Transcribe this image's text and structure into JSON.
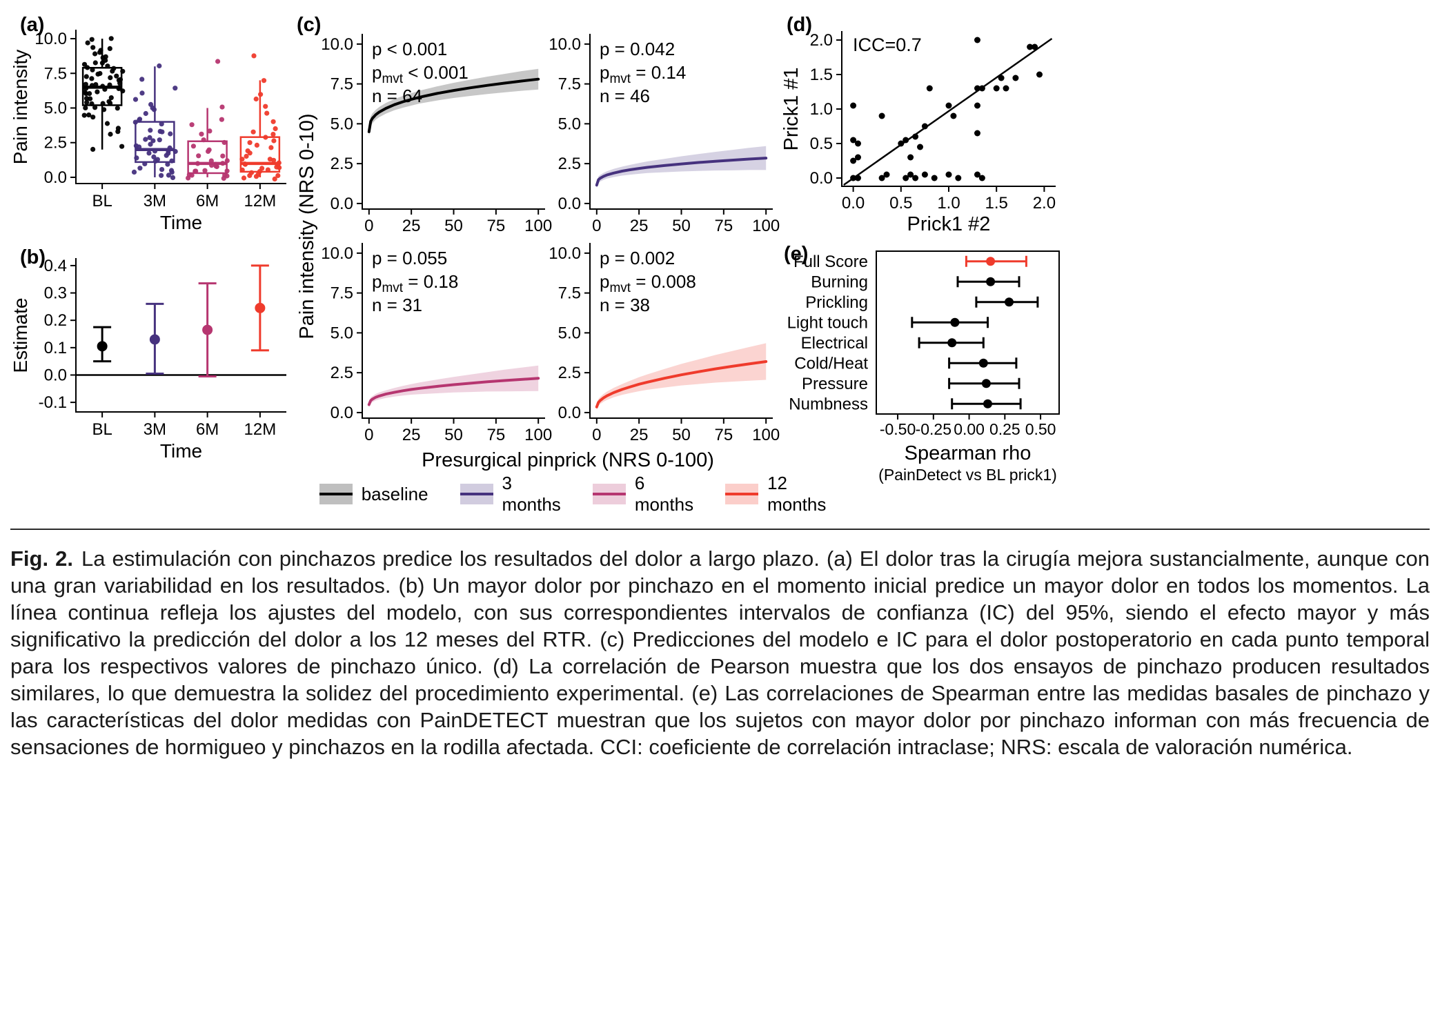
{
  "figure": {
    "panels": {
      "a": {
        "label": "(a)"
      },
      "b": {
        "label": "(b)"
      },
      "c": {
        "label": "(c)"
      },
      "d": {
        "label": "(d)"
      },
      "e": {
        "label": "(e)"
      }
    },
    "legend": {
      "items": [
        {
          "label": "baseline",
          "color": "#000000"
        },
        {
          "label": "3 months",
          "color": "#46327e"
        },
        {
          "label": "6 months",
          "color": "#b63670"
        },
        {
          "label": "12 months",
          "color": "#ef3b2c"
        }
      ]
    },
    "caption": {
      "prefix": "Fig. 2.",
      "text": "La estimulación con pinchazos predice los resultados del dolor a largo plazo. (a) El dolor tras la cirugía mejora sustancialmente, aunque con una gran variabilidad en los resultados. (b) Un mayor dolor por pinchazo en el momento inicial predice un mayor dolor en todos los momentos. La línea continua refleja los ajustes del modelo, con sus correspondientes intervalos de confianza (IC) del 95%, siendo el efecto mayor y más significativo la predicción del dolor a los 12 meses del RTR. (c) Predicciones del modelo e IC para el dolor postoperatorio en cada punto temporal para los respectivos valores de pinchazo único. (d) La correlación de Pearson muestra que los dos ensayos de pinchazo producen resultados similares, lo que demuestra la solidez del procedimiento experimental. (e) Las correlaciones de Spearman entre las medidas basales de pinchazo y las características del dolor medidas con PainDETECT muestran que los sujetos con mayor dolor por pinchazo informan con más frecuencia de sensaciones de hormigueo y pinchazos en la rodilla afectada. CCI: coeficiente de correlación intraclase; NRS: escala de valoración numérica."
    }
  },
  "chart_data": [
    {
      "id": "a",
      "type": "boxplot",
      "xlabel": "Time",
      "ylabel": "Pain intensity",
      "categories": [
        "BL",
        "3M",
        "6M",
        "12M"
      ],
      "yticks": [
        0,
        2.5,
        5,
        7.5,
        10
      ],
      "ytick_labels": [
        "0.0",
        "2.5",
        "5.0",
        "7.5",
        "10.0"
      ],
      "ylim": [
        -0.45,
        10.6
      ],
      "boxes": [
        {
          "category": "BL",
          "color": "#000000",
          "lo": 2.0,
          "q1": 5.2,
          "median": 6.5,
          "q3": 7.9,
          "hi": 10.0
        },
        {
          "category": "3M",
          "color": "#46327e",
          "lo": 0.0,
          "q1": 1.1,
          "median": 2.0,
          "q3": 4.0,
          "hi": 8.0
        },
        {
          "category": "6M",
          "color": "#b63670",
          "lo": 0.0,
          "q1": 0.3,
          "median": 1.0,
          "q3": 2.6,
          "hi": 5.0
        },
        {
          "category": "12M",
          "color": "#ef3b2c",
          "lo": 0.0,
          "q1": 0.4,
          "median": 1.0,
          "q3": 2.9,
          "hi": 7.0
        }
      ],
      "points": {
        "BL": [
          2.0,
          2.2,
          3.0,
          3.2,
          3.5,
          4.0,
          4.2,
          4.5,
          4.6,
          4.8,
          5.0,
          5.0,
          5.1,
          5.2,
          5.3,
          5.4,
          5.5,
          5.5,
          5.6,
          5.7,
          5.8,
          5.9,
          6.0,
          6.0,
          6.1,
          6.2,
          6.2,
          6.3,
          6.4,
          6.5,
          6.5,
          6.6,
          6.7,
          6.8,
          6.8,
          6.9,
          7.0,
          7.0,
          7.1,
          7.2,
          7.3,
          7.4,
          7.5,
          7.5,
          7.6,
          7.7,
          7.8,
          7.9,
          8.0,
          8.0,
          8.1,
          8.2,
          8.3,
          8.5,
          8.6,
          8.7,
          8.8,
          9.0,
          9.1,
          9.3,
          9.5,
          9.7,
          10.0,
          10.0
        ],
        "3M": [
          0.0,
          0.0,
          0.2,
          0.3,
          0.5,
          0.5,
          0.7,
          0.8,
          1.0,
          1.0,
          1.1,
          1.2,
          1.3,
          1.4,
          1.5,
          1.5,
          1.6,
          1.7,
          1.8,
          1.9,
          2.0,
          2.0,
          2.1,
          2.2,
          2.3,
          2.5,
          2.6,
          2.8,
          3.0,
          3.0,
          3.2,
          3.4,
          3.5,
          3.7,
          3.9,
          4.0,
          4.2,
          4.5,
          4.8,
          5.0,
          5.3,
          5.6,
          6.0,
          6.5,
          7.0,
          8.0
        ],
        "6M": [
          0.0,
          0.0,
          0.0,
          0.1,
          0.2,
          0.3,
          0.3,
          0.4,
          0.5,
          0.6,
          0.7,
          0.8,
          0.9,
          1.0,
          1.0,
          1.1,
          1.2,
          1.3,
          1.5,
          1.6,
          1.8,
          2.0,
          2.2,
          2.4,
          2.6,
          3.0,
          3.4,
          3.8,
          4.2,
          5.0,
          8.5
        ],
        "12M": [
          0.0,
          0.0,
          0.0,
          0.1,
          0.2,
          0.3,
          0.3,
          0.4,
          0.5,
          0.5,
          0.6,
          0.7,
          0.8,
          0.9,
          1.0,
          1.0,
          1.1,
          1.2,
          1.3,
          1.4,
          1.5,
          1.7,
          1.9,
          2.0,
          2.2,
          2.4,
          2.6,
          2.8,
          3.0,
          3.3,
          3.6,
          4.0,
          4.5,
          5.0,
          5.5,
          6.0,
          7.0,
          8.7
        ]
      }
    },
    {
      "id": "b",
      "type": "pointrange",
      "xlabel": "Time",
      "ylabel": "Estimate",
      "categories": [
        "BL",
        "3M",
        "6M",
        "12M"
      ],
      "yticks": [
        -0.1,
        0,
        0.1,
        0.2,
        0.3,
        0.4
      ],
      "ytick_labels": [
        "-0.1",
        "0.0",
        "0.1",
        "0.2",
        "0.3",
        "0.4"
      ],
      "ylim": [
        -0.135,
        0.425
      ],
      "hline": 0,
      "points": [
        {
          "category": "BL",
          "color": "#000000",
          "estimate": 0.105,
          "lo": 0.05,
          "hi": 0.175
        },
        {
          "category": "3M",
          "color": "#46327e",
          "estimate": 0.13,
          "lo": 0.005,
          "hi": 0.26
        },
        {
          "category": "6M",
          "color": "#b63670",
          "estimate": 0.165,
          "lo": -0.005,
          "hi": 0.335
        },
        {
          "category": "12M",
          "color": "#ef3b2c",
          "estimate": 0.245,
          "lo": 0.09,
          "hi": 0.4
        }
      ]
    },
    {
      "id": "c",
      "type": "line",
      "xlabel": "Presurgical pinprick (NRS 0-100)",
      "ylabel": "Pain intensity (NRS 0-10)",
      "xticks": [
        0,
        25,
        50,
        75,
        100
      ],
      "xtick_labels": [
        "0",
        "25",
        "50",
        "75",
        "100"
      ],
      "yticks": [
        0,
        2.5,
        5,
        7.5,
        10
      ],
      "ytick_labels": [
        "0.0",
        "2.5",
        "5.0",
        "7.5",
        "10.0"
      ],
      "xlim": [
        -4,
        104
      ],
      "ylim": [
        -0.35,
        10.6
      ],
      "x": [
        0,
        1,
        2,
        4,
        6,
        10,
        15,
        20,
        25,
        30,
        40,
        50,
        60,
        70,
        80,
        90,
        100
      ],
      "series": [
        {
          "name": "baseline",
          "color": "#000000",
          "stats": {
            "p": "p < 0.001",
            "pmvt_sub": "mvt",
            "pmvt": "< 0.001",
            "n": "n = 64"
          },
          "y": [
            4.5,
            5.16,
            5.34,
            5.57,
            5.73,
            5.97,
            6.2,
            6.38,
            6.53,
            6.67,
            6.9,
            7.09,
            7.26,
            7.41,
            7.55,
            7.68,
            7.8
          ],
          "ylo": [
            4.2,
            4.86,
            5.03,
            5.26,
            5.41,
            5.64,
            5.85,
            6.01,
            6.14,
            6.27,
            6.46,
            6.62,
            6.75,
            6.87,
            6.97,
            7.07,
            7.15
          ],
          "yhi": [
            4.8,
            5.46,
            5.65,
            5.88,
            6.05,
            6.31,
            6.55,
            6.75,
            6.92,
            7.08,
            7.34,
            7.57,
            7.77,
            7.96,
            8.13,
            8.3,
            8.45
          ]
        },
        {
          "name": "3 months",
          "color": "#46327e",
          "stats": {
            "p": "p = 0.042",
            "pmvt_sub": "mvt",
            "pmvt": "= 0.14",
            "n": "n = 46"
          },
          "y": [
            1.15,
            1.49,
            1.58,
            1.7,
            1.79,
            1.91,
            2.03,
            2.12,
            2.2,
            2.27,
            2.38,
            2.48,
            2.57,
            2.65,
            2.72,
            2.79,
            2.85
          ],
          "ylo": [
            0.95,
            1.28,
            1.37,
            1.48,
            1.56,
            1.66,
            1.75,
            1.81,
            1.86,
            1.91,
            1.96,
            2.01,
            2.04,
            2.07,
            2.08,
            2.1,
            2.1
          ],
          "yhi": [
            1.35,
            1.7,
            1.79,
            1.92,
            2.02,
            2.17,
            2.31,
            2.43,
            2.54,
            2.64,
            2.8,
            2.96,
            3.1,
            3.24,
            3.36,
            3.49,
            3.6
          ]
        },
        {
          "name": "6 months",
          "color": "#b63670",
          "stats": {
            "p": "p = 0.055",
            "pmvt_sub": "mvt",
            "pmvt": "= 0.18",
            "n": "n = 31"
          },
          "y": [
            0.5,
            0.76,
            0.84,
            0.96,
            1.04,
            1.16,
            1.27,
            1.37,
            1.45,
            1.52,
            1.64,
            1.75,
            1.84,
            1.93,
            2.01,
            2.08,
            2.15
          ],
          "ylo": [
            0.32,
            0.57,
            0.65,
            0.76,
            0.82,
            0.92,
            1.0,
            1.07,
            1.12,
            1.15,
            1.21,
            1.26,
            1.29,
            1.32,
            1.33,
            1.34,
            1.35
          ],
          "yhi": [
            0.68,
            0.95,
            1.03,
            1.17,
            1.26,
            1.4,
            1.54,
            1.67,
            1.79,
            1.89,
            2.07,
            2.24,
            2.39,
            2.54,
            2.69,
            2.82,
            2.95
          ]
        },
        {
          "name": "12 months",
          "color": "#ef3b2c",
          "stats": {
            "p": "p = 0.002",
            "pmvt_sub": "mvt",
            "pmvt": "= 0.008",
            "n": "n = 38"
          },
          "y": [
            0.35,
            0.64,
            0.75,
            0.92,
            1.05,
            1.25,
            1.45,
            1.62,
            1.78,
            1.91,
            2.15,
            2.37,
            2.56,
            2.74,
            2.9,
            3.05,
            3.2
          ],
          "ylo": [
            0.15,
            0.43,
            0.53,
            0.68,
            0.79,
            0.96,
            1.11,
            1.23,
            1.34,
            1.43,
            1.57,
            1.7,
            1.79,
            1.88,
            1.94,
            2.0,
            2.05
          ],
          "yhi": [
            0.55,
            0.85,
            0.97,
            1.16,
            1.31,
            1.55,
            1.79,
            2.01,
            2.22,
            2.4,
            2.73,
            3.05,
            3.33,
            3.61,
            3.86,
            4.11,
            4.35
          ]
        }
      ]
    },
    {
      "id": "d",
      "type": "scatter",
      "xlabel": "Prick1 #2",
      "ylabel": "Prick1 #1",
      "annotation": "ICC=0.7",
      "xticks": [
        0,
        0.5,
        1,
        1.5,
        2
      ],
      "xtick_labels": [
        "0.0",
        "0.5",
        "1.0",
        "1.5",
        "2.0"
      ],
      "yticks": [
        0,
        0.5,
        1,
        1.5,
        2
      ],
      "ytick_labels": [
        "0.0",
        "0.5",
        "1.0",
        "1.5",
        "2.0"
      ],
      "xlim": [
        -0.12,
        2.12
      ],
      "ylim": [
        -0.12,
        2.12
      ],
      "line": {
        "x1": -0.1,
        "y1": -0.1,
        "x2": 2.08,
        "y2": 2.02
      },
      "points": [
        [
          0,
          0
        ],
        [
          0.05,
          0
        ],
        [
          0.3,
          0
        ],
        [
          0.35,
          0.05
        ],
        [
          0.55,
          0
        ],
        [
          0.6,
          0.05
        ],
        [
          0.65,
          0
        ],
        [
          0.75,
          0.05
        ],
        [
          0.85,
          0
        ],
        [
          1.0,
          0.05
        ],
        [
          1.1,
          0
        ],
        [
          1.3,
          0.05
        ],
        [
          1.35,
          0
        ],
        [
          0,
          0.25
        ],
        [
          0.05,
          0.3
        ],
        [
          0,
          0.55
        ],
        [
          0.05,
          0.5
        ],
        [
          0,
          1.05
        ],
        [
          0.3,
          0.9
        ],
        [
          0.5,
          0.5
        ],
        [
          0.55,
          0.55
        ],
        [
          0.6,
          0.3
        ],
        [
          0.65,
          0.6
        ],
        [
          0.7,
          0.45
        ],
        [
          0.75,
          0.75
        ],
        [
          0.8,
          1.3
        ],
        [
          1.0,
          1.05
        ],
        [
          1.05,
          0.9
        ],
        [
          1.3,
          1.3
        ],
        [
          1.3,
          1.05
        ],
        [
          1.3,
          0.65
        ],
        [
          1.3,
          2.0
        ],
        [
          1.35,
          1.3
        ],
        [
          1.5,
          1.3
        ],
        [
          1.55,
          1.45
        ],
        [
          1.6,
          1.3
        ],
        [
          1.7,
          1.45
        ],
        [
          1.85,
          1.9
        ],
        [
          1.9,
          1.9
        ],
        [
          1.95,
          1.5
        ]
      ]
    },
    {
      "id": "e",
      "type": "forest",
      "xlabel": "Spearman rho",
      "xlabel_sub": "(PainDetect vs BL prick1)",
      "xticks": [
        -0.5,
        -0.25,
        0,
        0.25,
        0.5
      ],
      "xtick_labels": [
        "-0.50",
        "-0.25",
        "0.00",
        "0.25",
        "0.50"
      ],
      "xlim": [
        -0.65,
        0.63
      ],
      "rows": [
        {
          "label": "Full Score",
          "color": "#ef3b2c",
          "estimate": 0.15,
          "lo": -0.02,
          "hi": 0.4
        },
        {
          "label": "Burning",
          "color": "#000000",
          "estimate": 0.15,
          "lo": -0.08,
          "hi": 0.35
        },
        {
          "label": "Prickling",
          "color": "#000000",
          "estimate": 0.28,
          "lo": 0.05,
          "hi": 0.48
        },
        {
          "label": "Light touch",
          "color": "#000000",
          "estimate": -0.1,
          "lo": -0.4,
          "hi": 0.13
        },
        {
          "label": "Electrical",
          "color": "#000000",
          "estimate": -0.12,
          "lo": -0.35,
          "hi": 0.1
        },
        {
          "label": "Cold/Heat",
          "color": "#000000",
          "estimate": 0.1,
          "lo": -0.14,
          "hi": 0.33
        },
        {
          "label": "Pressure",
          "color": "#000000",
          "estimate": 0.12,
          "lo": -0.14,
          "hi": 0.35
        },
        {
          "label": "Numbness",
          "color": "#000000",
          "estimate": 0.13,
          "lo": -0.12,
          "hi": 0.36
        }
      ]
    }
  ]
}
